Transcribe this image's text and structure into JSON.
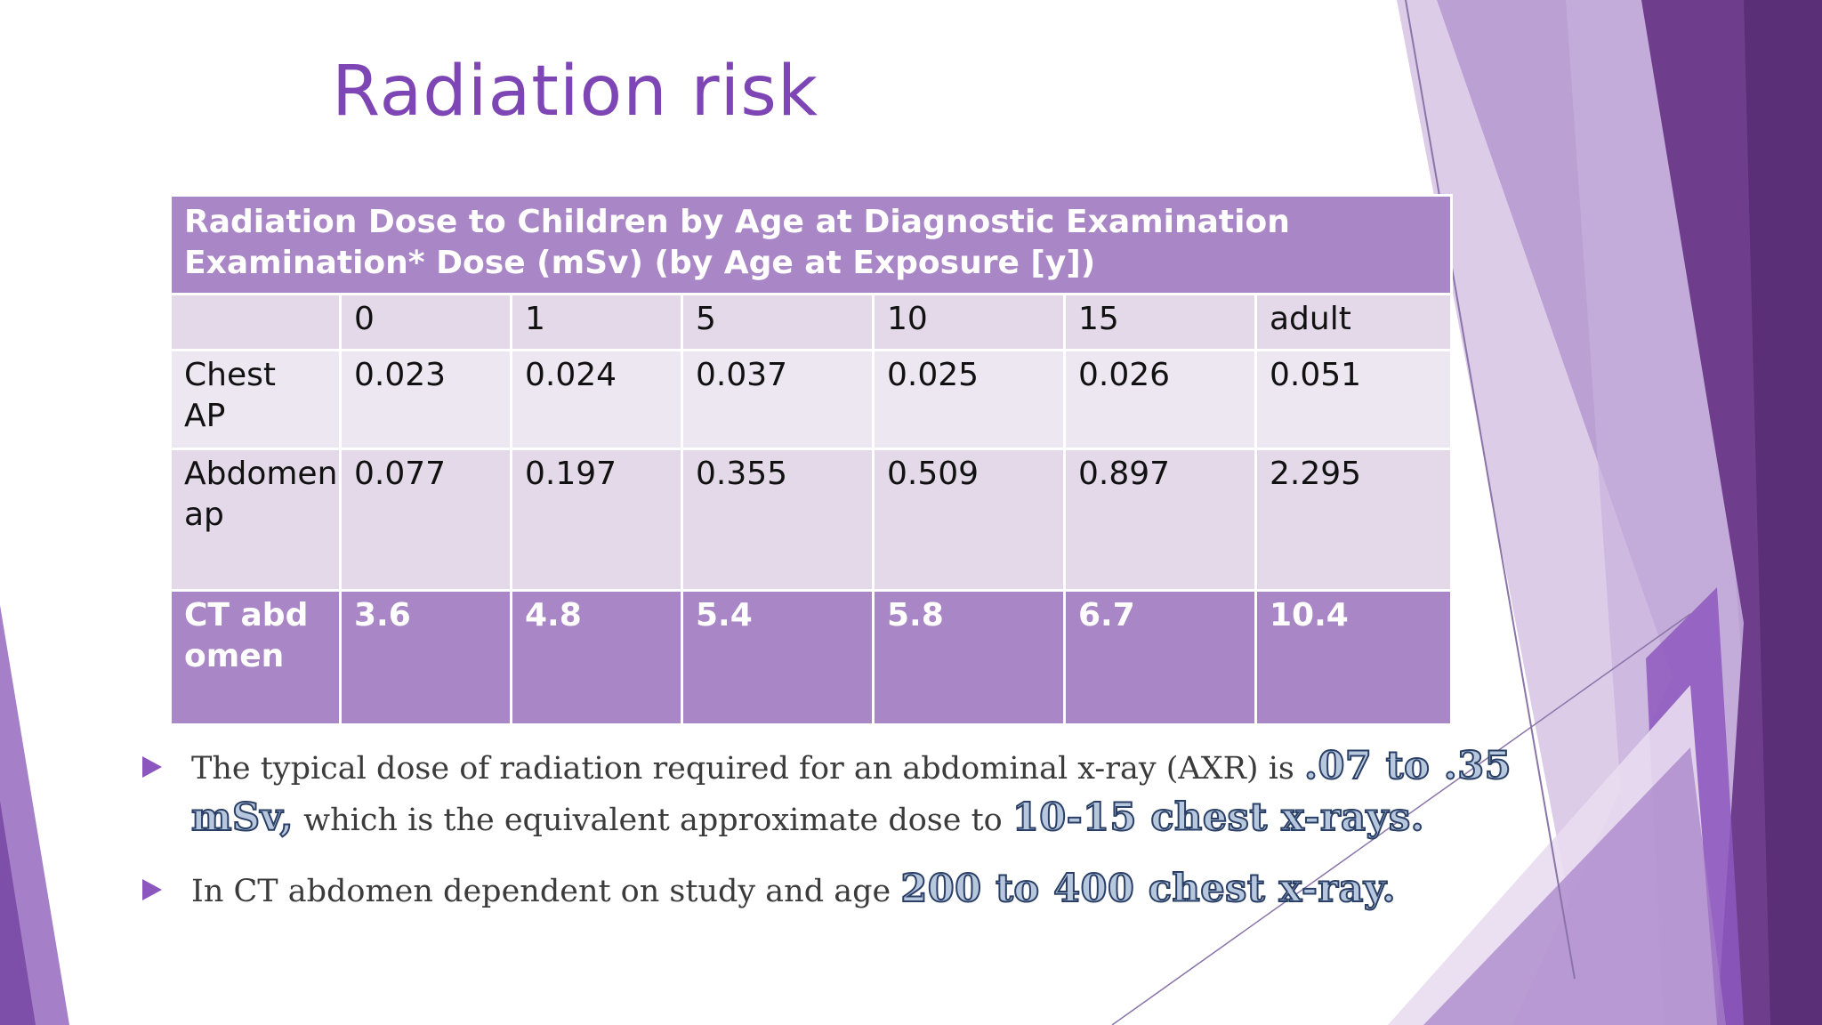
{
  "slide": {
    "title": "Radiation risk",
    "accent": "#7E46B4"
  },
  "table": {
    "caption": "Radiation Dose to Children by Age at Diagnostic Examination Examination* Dose (mSv) (by Age at Exposure [y])",
    "ages": [
      "",
      "0",
      "1",
      "5",
      "10",
      "15",
      "adult"
    ],
    "rows": [
      {
        "label": "Chest AP",
        "values": [
          "0.023",
          "0.024",
          "0.037",
          "0.025",
          "0.026",
          "0.051"
        ]
      },
      {
        "label": "Abdomen ap",
        "values": [
          "0.077",
          "0.197",
          "0.355",
          "0.509",
          "0.897",
          "2.295"
        ]
      },
      {
        "label": "CT abdomen",
        "values": [
          "3.6",
          "4.8",
          "5.4",
          "5.8",
          "6.7",
          "10.4"
        ]
      }
    ]
  },
  "bullets": [
    {
      "icon": "triangle-bullet-icon",
      "text_a": "The typical dose of radiation required for an abdominal x-ray (AXR) is ",
      "em_a": ".07 to .35 mSv,",
      "text_b": " which is the equivalent approximate dose to ",
      "em_b": "10-15 chest x-rays."
    },
    {
      "icon": "triangle-bullet-icon",
      "text_a": "In CT abdomen dependent on study and age ",
      "em_a": "200 to 400 chest x-ray."
    }
  ]
}
